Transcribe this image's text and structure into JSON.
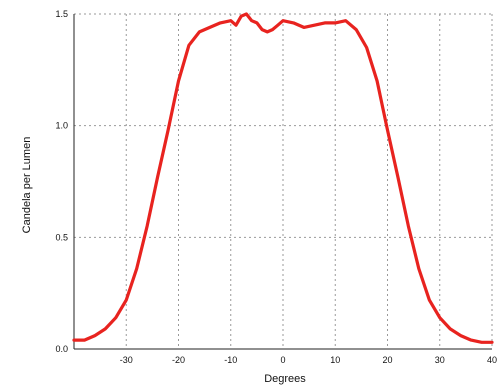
{
  "chart_data": {
    "type": "line",
    "title": "",
    "xlabel": "Degrees",
    "ylabel": "Candela per Lumen",
    "xlim": [
      -40,
      40
    ],
    "ylim": [
      0.0,
      1.5
    ],
    "x_ticks": [
      -30,
      -20,
      -10,
      0,
      10,
      20,
      30,
      40
    ],
    "x_tick_labels": [
      "-30",
      "-20",
      "-10",
      "0",
      "10",
      "20",
      "30",
      "40"
    ],
    "y_ticks": [
      0.0,
      0.5,
      1.0,
      1.5
    ],
    "y_tick_labels": [
      "0.0",
      "0.5",
      "1.0",
      "1.5"
    ],
    "grid": true,
    "series": [
      {
        "color": "#e8231f",
        "x": [
          -40,
          -38,
          -36,
          -34,
          -32,
          -30,
          -28,
          -26,
          -24,
          -22,
          -20,
          -18,
          -16,
          -14,
          -12,
          -10,
          -9,
          -8,
          -7,
          -6,
          -5,
          -4,
          -3,
          -2,
          -1,
          0,
          2,
          4,
          6,
          8,
          10,
          12,
          14,
          16,
          18,
          20,
          22,
          24,
          26,
          28,
          30,
          32,
          34,
          36,
          38,
          40
        ],
        "y": [
          0.04,
          0.04,
          0.06,
          0.09,
          0.14,
          0.22,
          0.36,
          0.55,
          0.77,
          0.98,
          1.2,
          1.36,
          1.42,
          1.44,
          1.46,
          1.47,
          1.45,
          1.49,
          1.5,
          1.47,
          1.46,
          1.43,
          1.42,
          1.43,
          1.45,
          1.47,
          1.46,
          1.44,
          1.45,
          1.46,
          1.46,
          1.47,
          1.43,
          1.35,
          1.2,
          0.98,
          0.77,
          0.55,
          0.36,
          0.22,
          0.14,
          0.09,
          0.06,
          0.04,
          0.03,
          0.03
        ]
      }
    ]
  }
}
